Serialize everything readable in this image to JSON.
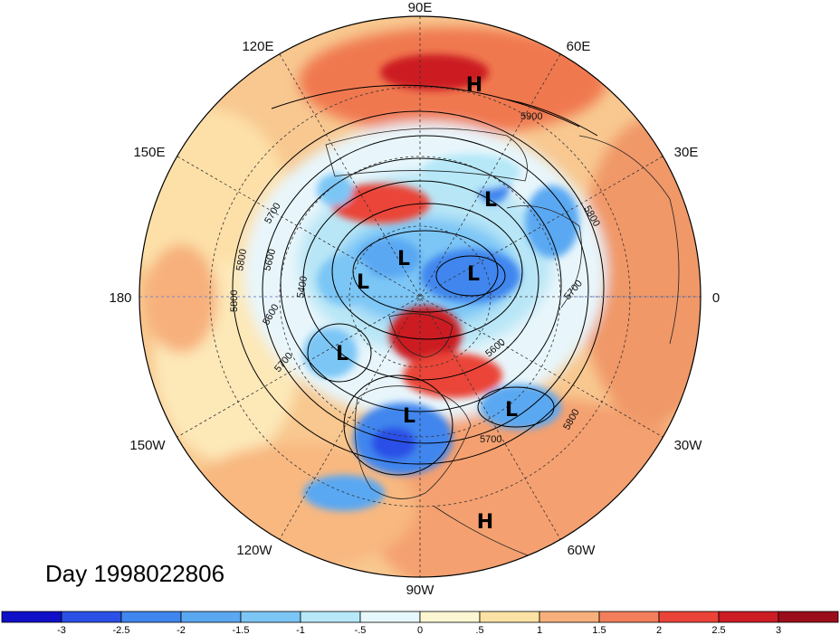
{
  "title": "Day 1998022806",
  "longitude_labels": {
    "top": "90E",
    "top_left": "120E",
    "top_right": "60E",
    "upper_left": "150E",
    "upper_right": "30E",
    "left": "180",
    "right": "0",
    "lower_left": "150W",
    "lower_right": "30W",
    "bottom_left": "120W",
    "bottom_right": "60W",
    "bottom": "90W"
  },
  "contour_labels": [
    "5900",
    "5800",
    "5700",
    "5800",
    "5600",
    "5400",
    "5800",
    "5700",
    "5600",
    "5700",
    "5800",
    "5700",
    "5600"
  ],
  "pressure_centers": [
    "H",
    "L",
    "L",
    "L",
    "L",
    "L",
    "L",
    "L",
    "H"
  ],
  "colorbar": {
    "labels": [
      "-3",
      "-2.5",
      "-2",
      "-1.5",
      "-1",
      "-.5",
      "0",
      ".5",
      "1",
      "1.5",
      "2",
      "2.5",
      "3"
    ],
    "colors": [
      "#1010c8",
      "#2a50e6",
      "#3f86ee",
      "#5aa8f2",
      "#7cc6f6",
      "#b6e8f8",
      "#e6f8fc",
      "#fdf6d2",
      "#fbe2a4",
      "#f7b07c",
      "#f27e5c",
      "#ea4438",
      "#cc1c24",
      "#9a0e1c"
    ]
  }
}
